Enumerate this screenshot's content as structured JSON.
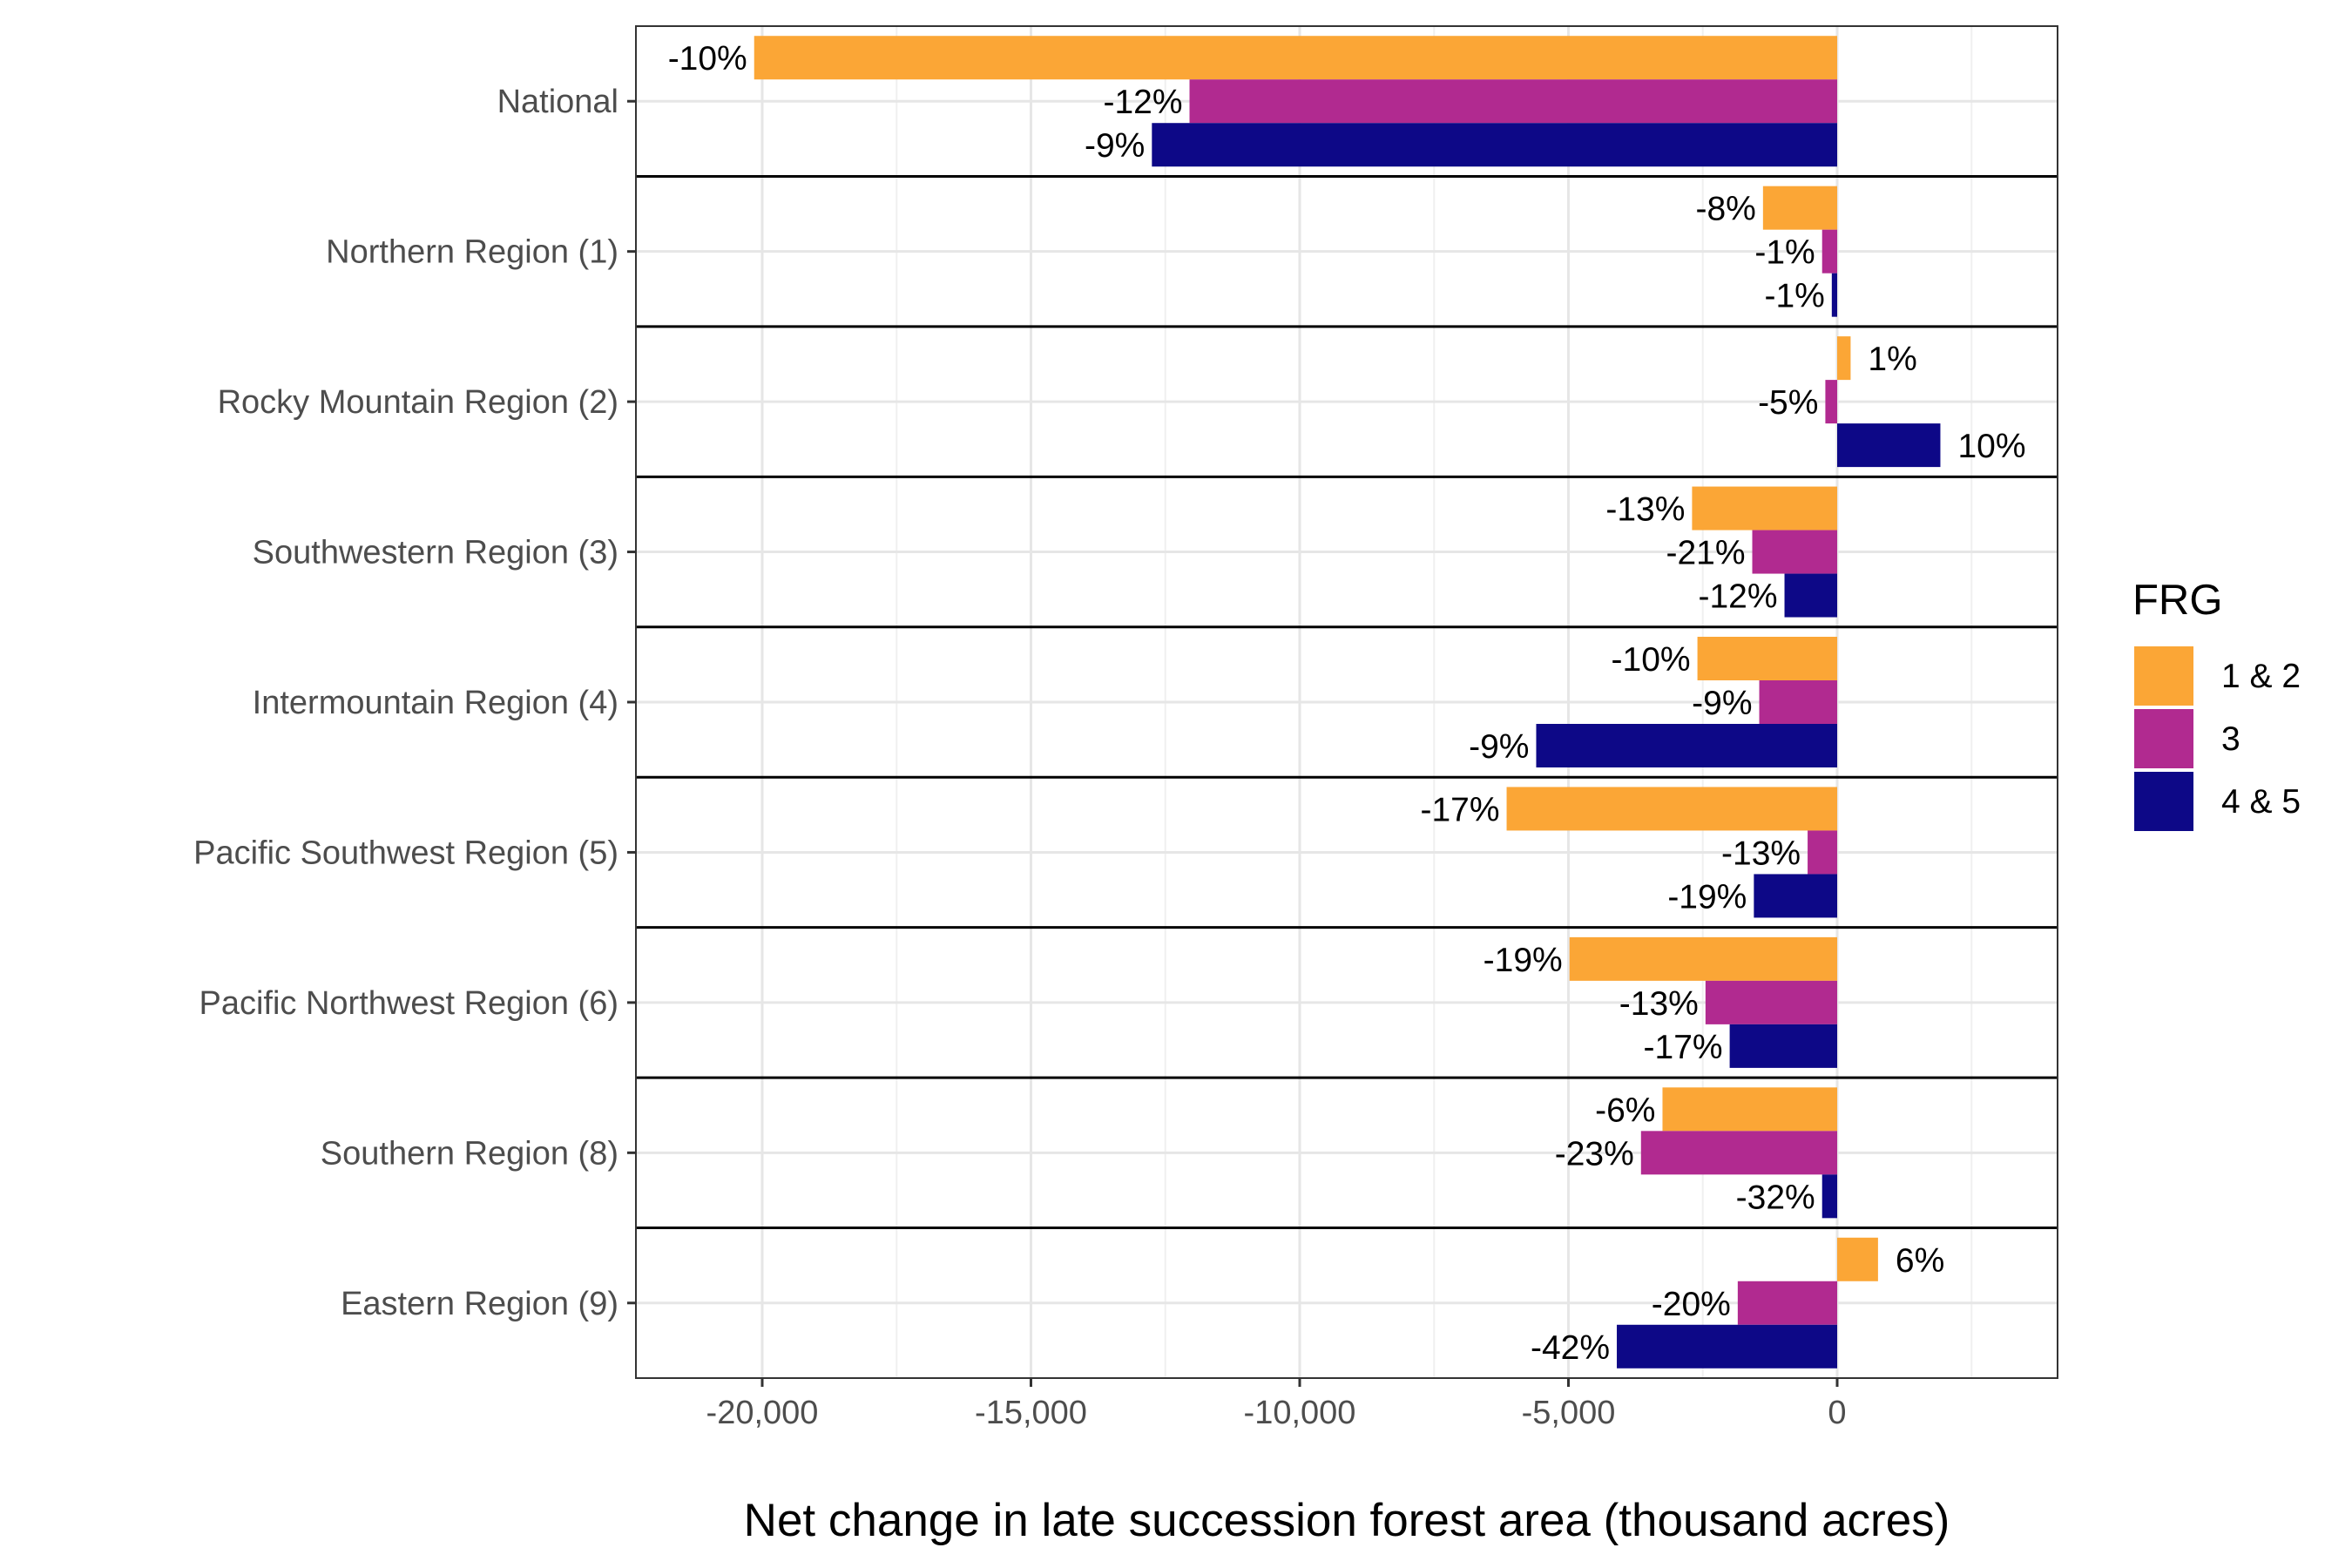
{
  "chart_data": {
    "type": "bar",
    "orientation": "horizontal",
    "xlabel": "Net change in late succession forest area (thousand acres)",
    "ylabel": "",
    "xlim": [
      -22300,
      4100
    ],
    "xticks": [
      -20000,
      -15000,
      -10000,
      -5000,
      0
    ],
    "xtick_labels": [
      "-20,000",
      "-15,000",
      "-10,000",
      "-5,000",
      "0"
    ],
    "grid": true,
    "categories": [
      "National",
      "Northern Region (1)",
      "Rocky Mountain Region (2)",
      "Southwestern Region (3)",
      "Intermountain Region (4)",
      "Pacific Southwest Region (5)",
      "Pacific Northwest Region (6)",
      "Southern Region (8)",
      "Eastern Region (9)"
    ],
    "series": [
      {
        "name": "1 & 2",
        "color": "#FBA636",
        "values": [
          -20150,
          -1380,
          250,
          -2700,
          -2600,
          -6150,
          -4980,
          -3250,
          760
        ],
        "labels": [
          "-10%",
          "-8%",
          "1%",
          "-13%",
          "-10%",
          "-17%",
          "-19%",
          "-6%",
          "6%"
        ]
      },
      {
        "name": "3",
        "color": "#B12A90",
        "values": [
          -12050,
          -280,
          -220,
          -1580,
          -1450,
          -550,
          -2450,
          -3650,
          -1850
        ],
        "labels": [
          "-12%",
          "-1%",
          "-5%",
          "-21%",
          "-9%",
          "-13%",
          "-13%",
          "-23%",
          "-20%"
        ]
      },
      {
        "name": "4 & 5",
        "color": "#0D0887",
        "values": [
          -12750,
          -100,
          1920,
          -980,
          -5600,
          -1550,
          -2000,
          -280,
          -4100
        ],
        "labels": [
          "-9%",
          "-1%",
          "10%",
          "-12%",
          "-9%",
          "-19%",
          "-17%",
          "-32%",
          "-42%"
        ]
      }
    ],
    "legend": {
      "title": "FRG",
      "position": "right"
    }
  }
}
